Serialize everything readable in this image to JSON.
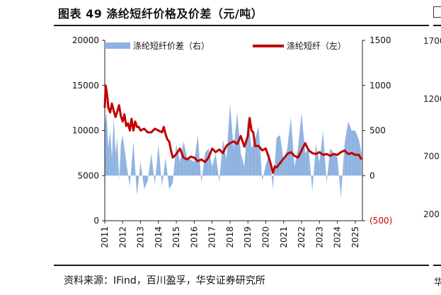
{
  "header": {
    "title": "图表 49 涤纶短纤价格及价差（元/吨）"
  },
  "footer": {
    "source": "资料来源：IFind，百川盈孚，华安证券研究所"
  },
  "right_panel": {
    "tick_labels": [
      "1700",
      "1200",
      "700",
      "200"
    ],
    "bottom_char": "华"
  },
  "colors": {
    "price_line": "#c00000",
    "spread_area": "#8fb3e0",
    "axis": "#222222",
    "negative_label": "#c00000"
  },
  "chart_data": {
    "type": "area",
    "title": "",
    "left_axis": {
      "ylim": [
        0,
        20000
      ],
      "ticks": [
        0,
        5000,
        10000,
        15000,
        20000
      ],
      "tick_labels": [
        "0",
        "5000",
        "10000",
        "15000",
        "20000"
      ]
    },
    "right_axis": {
      "ylim": [
        -500,
        1500
      ],
      "ticks": [
        -500,
        0,
        500,
        1000,
        1500
      ],
      "tick_labels": [
        "(500)",
        "0",
        "500",
        "1000",
        "1500"
      ]
    },
    "x_axis": {
      "xlim": [
        2011.0,
        2025.4
      ],
      "tick_labels": [
        "2011",
        "2012",
        "2013",
        "2014",
        "2015",
        "2016",
        "2017",
        "2018",
        "2019",
        "2020",
        "2021",
        "2022",
        "2023",
        "2024",
        "2025"
      ]
    },
    "legend_position": "top",
    "series": [
      {
        "name": "涤纶短纤价差（右）",
        "type": "area",
        "axis": "right",
        "x": [
          2011.0,
          2011.1,
          2011.2,
          2011.3,
          2011.4,
          2011.5,
          2011.6,
          2011.7,
          2011.8,
          2011.9,
          2012.0,
          2012.2,
          2012.4,
          2012.6,
          2012.8,
          2013.0,
          2013.2,
          2013.4,
          2013.6,
          2013.8,
          2014.0,
          2014.2,
          2014.4,
          2014.6,
          2014.8,
          2015.0,
          2015.2,
          2015.4,
          2015.6,
          2015.8,
          2016.0,
          2016.2,
          2016.4,
          2016.6,
          2016.8,
          2017.0,
          2017.2,
          2017.4,
          2017.6,
          2017.8,
          2018.0,
          2018.2,
          2018.4,
          2018.6,
          2018.8,
          2019.0,
          2019.2,
          2019.4,
          2019.6,
          2019.8,
          2020.0,
          2020.2,
          2020.4,
          2020.6,
          2020.8,
          2021.0,
          2021.2,
          2021.4,
          2021.6,
          2021.8,
          2022.0,
          2022.2,
          2022.4,
          2022.6,
          2022.8,
          2023.0,
          2023.2,
          2023.4,
          2023.6,
          2023.8,
          2024.0,
          2024.2,
          2024.4,
          2024.6,
          2024.8,
          2025.0,
          2025.2,
          2025.35
        ],
        "values": [
          550,
          700,
          300,
          500,
          200,
          650,
          250,
          420,
          -50,
          350,
          450,
          150,
          -120,
          380,
          -220,
          150,
          -150,
          -60,
          250,
          -100,
          350,
          -120,
          200,
          -150,
          -80,
          350,
          150,
          380,
          200,
          180,
          150,
          450,
          -80,
          250,
          300,
          100,
          250,
          -80,
          400,
          180,
          800,
          300,
          700,
          250,
          100,
          650,
          300,
          400,
          550,
          -60,
          120,
          250,
          -150,
          420,
          450,
          150,
          300,
          650,
          100,
          300,
          700,
          250,
          300,
          -180,
          350,
          150,
          500,
          -80,
          300,
          250,
          200,
          -250,
          350,
          600,
          500,
          500,
          400,
          250
        ]
      },
      {
        "name": "涤纶短纤（左）",
        "type": "line",
        "axis": "left",
        "x": [
          2011.0,
          2011.05,
          2011.1,
          2011.15,
          2011.2,
          2011.3,
          2011.4,
          2011.5,
          2011.6,
          2011.7,
          2011.8,
          2011.9,
          2012.0,
          2012.1,
          2012.2,
          2012.3,
          2012.4,
          2012.5,
          2012.6,
          2012.7,
          2012.8,
          2012.9,
          2013.0,
          2013.2,
          2013.4,
          2013.6,
          2013.8,
          2014.0,
          2014.2,
          2014.3,
          2014.4,
          2014.5,
          2014.6,
          2014.7,
          2014.8,
          2014.9,
          2015.0,
          2015.2,
          2015.4,
          2015.6,
          2015.8,
          2016.0,
          2016.2,
          2016.4,
          2016.6,
          2016.8,
          2017.0,
          2017.2,
          2017.4,
          2017.6,
          2017.8,
          2018.0,
          2018.2,
          2018.4,
          2018.6,
          2018.8,
          2019.0,
          2019.1,
          2019.2,
          2019.3,
          2019.4,
          2019.6,
          2019.8,
          2020.0,
          2020.2,
          2020.3,
          2020.4,
          2020.5,
          2020.6,
          2020.8,
          2021.0,
          2021.2,
          2021.4,
          2021.6,
          2021.8,
          2022.0,
          2022.2,
          2022.4,
          2022.6,
          2022.8,
          2023.0,
          2023.2,
          2023.4,
          2023.6,
          2023.8,
          2024.0,
          2024.2,
          2024.4,
          2024.6,
          2024.8,
          2025.0,
          2025.2,
          2025.35
        ],
        "values": [
          12500,
          15000,
          14400,
          13600,
          12500,
          12000,
          13000,
          12200,
          11500,
          12100,
          12800,
          11600,
          11000,
          11800,
          10500,
          10800,
          10000,
          11300,
          10000,
          11000,
          10400,
          10400,
          10000,
          10200,
          9800,
          9800,
          10200,
          10000,
          9800,
          10400,
          9600,
          9000,
          8800,
          7800,
          7000,
          7200,
          7400,
          8000,
          7000,
          6800,
          7100,
          7000,
          6600,
          6800,
          6500,
          7000,
          8000,
          7600,
          7900,
          7500,
          8300,
          8600,
          8800,
          8500,
          9400,
          8200,
          9400,
          11400,
          10000,
          9800,
          8300,
          8300,
          7800,
          8000,
          6800,
          6100,
          5300,
          6000,
          5900,
          6400,
          6900,
          7400,
          7600,
          7200,
          7000,
          7800,
          8600,
          7800,
          7500,
          7400,
          7600,
          7300,
          7400,
          7200,
          7400,
          7300,
          7600,
          7800,
          7400,
          7500,
          7300,
          7300,
          6800
        ]
      }
    ]
  }
}
